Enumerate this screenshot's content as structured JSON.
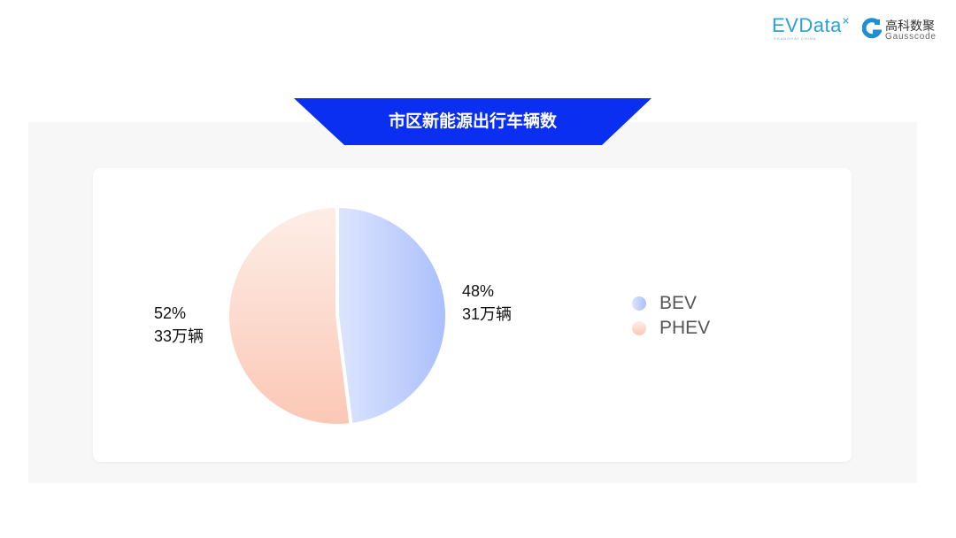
{
  "header": {
    "logo_evdata": "EVData",
    "logo_evdata_sub": "SHANGHAI CHINA",
    "logo_gauss_cn": "高科数聚",
    "logo_gauss_en": "Gausscode"
  },
  "chart_data": {
    "type": "pie",
    "title": "市区新能源出行车辆数",
    "slices": [
      {
        "name": "BEV",
        "percent": 48,
        "value_label": "31万辆",
        "value": 31,
        "color_start": "#dde5fd",
        "color_end": "#aabffc"
      },
      {
        "name": "PHEV",
        "percent": 52,
        "value_label": "33万辆",
        "value": 33,
        "color_start": "#fdeee8",
        "color_end": "#fcc7b5"
      }
    ],
    "data_labels": [
      {
        "pct": "48%",
        "val": "31万辆"
      },
      {
        "pct": "52%",
        "val": "33万辆"
      }
    ],
    "legend": {
      "position": "right",
      "entries": [
        "BEV",
        "PHEV"
      ]
    },
    "banner_color": "#0b2ff0"
  }
}
